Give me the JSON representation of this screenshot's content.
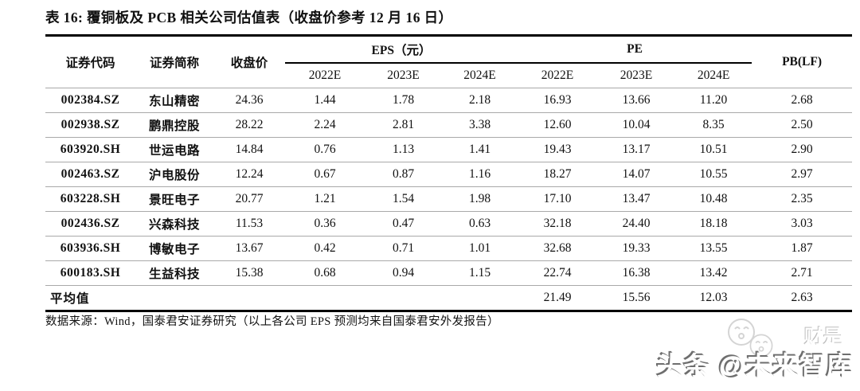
{
  "title": "表 16: 覆铜板及 PCB 相关公司估值表（收盘价参考 12 月 16 日）",
  "table": {
    "headers": {
      "code": "证券代码",
      "name": "证券简称",
      "price": "收盘价",
      "eps_group": "EPS（元）",
      "pe_group": "PE",
      "pb": "PB(LF)"
    },
    "years": [
      "2022E",
      "2023E",
      "2024E"
    ],
    "rows": [
      {
        "code": "002384.SZ",
        "name": "东山精密",
        "price": "24.36",
        "eps": [
          "1.44",
          "1.78",
          "2.18"
        ],
        "pe": [
          "16.93",
          "13.66",
          "11.20"
        ],
        "pb": "2.68"
      },
      {
        "code": "002938.SZ",
        "name": "鹏鼎控股",
        "price": "28.22",
        "eps": [
          "2.24",
          "2.81",
          "3.38"
        ],
        "pe": [
          "12.60",
          "10.04",
          "8.35"
        ],
        "pb": "2.50"
      },
      {
        "code": "603920.SH",
        "name": "世运电路",
        "price": "14.84",
        "eps": [
          "0.76",
          "1.13",
          "1.41"
        ],
        "pe": [
          "19.43",
          "13.17",
          "10.51"
        ],
        "pb": "2.90"
      },
      {
        "code": "002463.SZ",
        "name": "沪电股份",
        "price": "12.24",
        "eps": [
          "0.67",
          "0.87",
          "1.16"
        ],
        "pe": [
          "18.27",
          "14.07",
          "10.55"
        ],
        "pb": "2.97"
      },
      {
        "code": "603228.SH",
        "name": "景旺电子",
        "price": "20.77",
        "eps": [
          "1.21",
          "1.54",
          "1.98"
        ],
        "pe": [
          "17.10",
          "13.47",
          "10.48"
        ],
        "pb": "2.35"
      },
      {
        "code": "002436.SZ",
        "name": "兴森科技",
        "price": "11.53",
        "eps": [
          "0.36",
          "0.47",
          "0.63"
        ],
        "pe": [
          "32.18",
          "24.40",
          "18.18"
        ],
        "pb": "3.03"
      },
      {
        "code": "603936.SH",
        "name": "博敏电子",
        "price": "13.67",
        "eps": [
          "0.42",
          "0.71",
          "1.01"
        ],
        "pe": [
          "32.68",
          "19.33",
          "13.55"
        ],
        "pb": "1.87"
      },
      {
        "code": "600183.SH",
        "name": "生益科技",
        "price": "15.38",
        "eps": [
          "0.68",
          "0.94",
          "1.15"
        ],
        "pe": [
          "22.74",
          "16.38",
          "13.42"
        ],
        "pb": "2.71"
      }
    ],
    "average": {
      "label": "平均值",
      "pe": [
        "21.49",
        "15.56",
        "12.03"
      ],
      "pb": "2.63"
    }
  },
  "source_note": "数据来源：Wind，国泰君安证券研究（以上各公司 EPS 预测均来自国泰君安外发报告）",
  "watermark": {
    "main_text": "头条 @未来智库",
    "faint_text": "财是",
    "emboss_shadow_color": "#6e6e6e",
    "faint_color": "#d4d4d4"
  }
}
